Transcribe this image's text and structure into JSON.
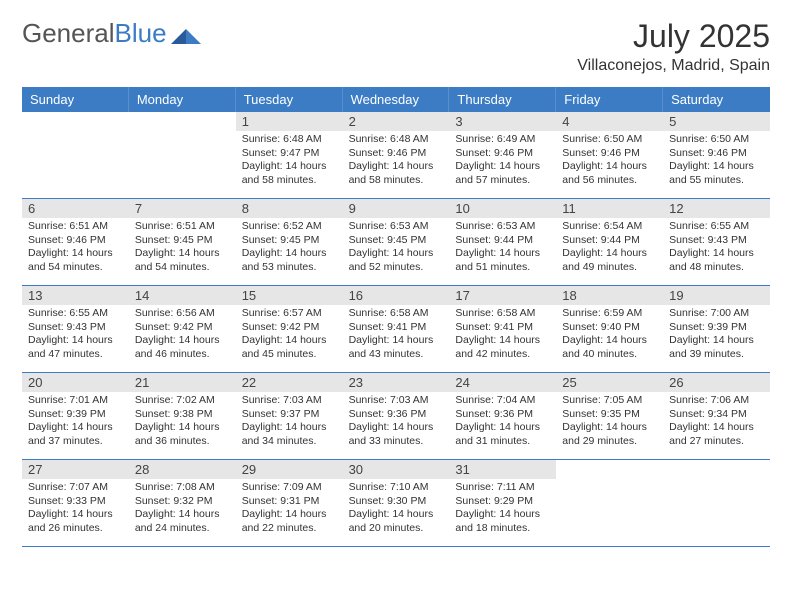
{
  "logo": {
    "text_general": "General",
    "text_blue": "Blue"
  },
  "title": "July 2025",
  "location": "Villaconejos, Madrid, Spain",
  "colors": {
    "header_bg": "#3b7cc4",
    "header_text": "#ffffff",
    "daynum_bg": "#e6e6e6",
    "border": "#3b7cc4",
    "text": "#333333"
  },
  "weekdays": [
    "Sunday",
    "Monday",
    "Tuesday",
    "Wednesday",
    "Thursday",
    "Friday",
    "Saturday"
  ],
  "weeks": [
    [
      null,
      null,
      {
        "n": "1",
        "sunrise": "6:48 AM",
        "sunset": "9:47 PM",
        "daylight": "14 hours and 58 minutes."
      },
      {
        "n": "2",
        "sunrise": "6:48 AM",
        "sunset": "9:46 PM",
        "daylight": "14 hours and 58 minutes."
      },
      {
        "n": "3",
        "sunrise": "6:49 AM",
        "sunset": "9:46 PM",
        "daylight": "14 hours and 57 minutes."
      },
      {
        "n": "4",
        "sunrise": "6:50 AM",
        "sunset": "9:46 PM",
        "daylight": "14 hours and 56 minutes."
      },
      {
        "n": "5",
        "sunrise": "6:50 AM",
        "sunset": "9:46 PM",
        "daylight": "14 hours and 55 minutes."
      }
    ],
    [
      {
        "n": "6",
        "sunrise": "6:51 AM",
        "sunset": "9:46 PM",
        "daylight": "14 hours and 54 minutes."
      },
      {
        "n": "7",
        "sunrise": "6:51 AM",
        "sunset": "9:45 PM",
        "daylight": "14 hours and 54 minutes."
      },
      {
        "n": "8",
        "sunrise": "6:52 AM",
        "sunset": "9:45 PM",
        "daylight": "14 hours and 53 minutes."
      },
      {
        "n": "9",
        "sunrise": "6:53 AM",
        "sunset": "9:45 PM",
        "daylight": "14 hours and 52 minutes."
      },
      {
        "n": "10",
        "sunrise": "6:53 AM",
        "sunset": "9:44 PM",
        "daylight": "14 hours and 51 minutes."
      },
      {
        "n": "11",
        "sunrise": "6:54 AM",
        "sunset": "9:44 PM",
        "daylight": "14 hours and 49 minutes."
      },
      {
        "n": "12",
        "sunrise": "6:55 AM",
        "sunset": "9:43 PM",
        "daylight": "14 hours and 48 minutes."
      }
    ],
    [
      {
        "n": "13",
        "sunrise": "6:55 AM",
        "sunset": "9:43 PM",
        "daylight": "14 hours and 47 minutes."
      },
      {
        "n": "14",
        "sunrise": "6:56 AM",
        "sunset": "9:42 PM",
        "daylight": "14 hours and 46 minutes."
      },
      {
        "n": "15",
        "sunrise": "6:57 AM",
        "sunset": "9:42 PM",
        "daylight": "14 hours and 45 minutes."
      },
      {
        "n": "16",
        "sunrise": "6:58 AM",
        "sunset": "9:41 PM",
        "daylight": "14 hours and 43 minutes."
      },
      {
        "n": "17",
        "sunrise": "6:58 AM",
        "sunset": "9:41 PM",
        "daylight": "14 hours and 42 minutes."
      },
      {
        "n": "18",
        "sunrise": "6:59 AM",
        "sunset": "9:40 PM",
        "daylight": "14 hours and 40 minutes."
      },
      {
        "n": "19",
        "sunrise": "7:00 AM",
        "sunset": "9:39 PM",
        "daylight": "14 hours and 39 minutes."
      }
    ],
    [
      {
        "n": "20",
        "sunrise": "7:01 AM",
        "sunset": "9:39 PM",
        "daylight": "14 hours and 37 minutes."
      },
      {
        "n": "21",
        "sunrise": "7:02 AM",
        "sunset": "9:38 PM",
        "daylight": "14 hours and 36 minutes."
      },
      {
        "n": "22",
        "sunrise": "7:03 AM",
        "sunset": "9:37 PM",
        "daylight": "14 hours and 34 minutes."
      },
      {
        "n": "23",
        "sunrise": "7:03 AM",
        "sunset": "9:36 PM",
        "daylight": "14 hours and 33 minutes."
      },
      {
        "n": "24",
        "sunrise": "7:04 AM",
        "sunset": "9:36 PM",
        "daylight": "14 hours and 31 minutes."
      },
      {
        "n": "25",
        "sunrise": "7:05 AM",
        "sunset": "9:35 PM",
        "daylight": "14 hours and 29 minutes."
      },
      {
        "n": "26",
        "sunrise": "7:06 AM",
        "sunset": "9:34 PM",
        "daylight": "14 hours and 27 minutes."
      }
    ],
    [
      {
        "n": "27",
        "sunrise": "7:07 AM",
        "sunset": "9:33 PM",
        "daylight": "14 hours and 26 minutes."
      },
      {
        "n": "28",
        "sunrise": "7:08 AM",
        "sunset": "9:32 PM",
        "daylight": "14 hours and 24 minutes."
      },
      {
        "n": "29",
        "sunrise": "7:09 AM",
        "sunset": "9:31 PM",
        "daylight": "14 hours and 22 minutes."
      },
      {
        "n": "30",
        "sunrise": "7:10 AM",
        "sunset": "9:30 PM",
        "daylight": "14 hours and 20 minutes."
      },
      {
        "n": "31",
        "sunrise": "7:11 AM",
        "sunset": "9:29 PM",
        "daylight": "14 hours and 18 minutes."
      },
      null,
      null
    ]
  ],
  "labels": {
    "sunrise": "Sunrise:",
    "sunset": "Sunset:",
    "daylight": "Daylight:"
  }
}
